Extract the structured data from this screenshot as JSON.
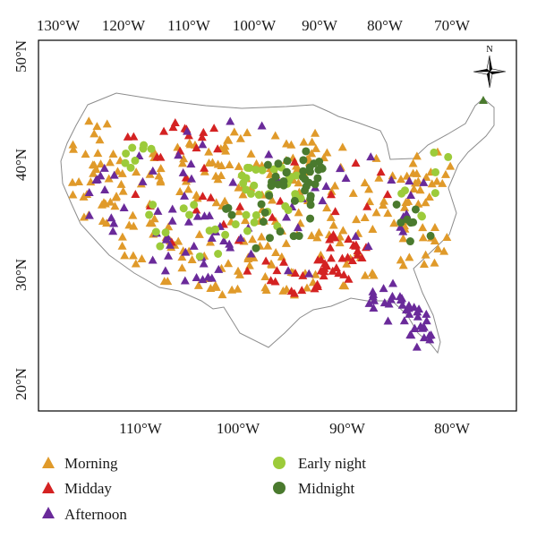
{
  "map": {
    "top_lon_ticks": [
      {
        "lon": -130,
        "label": "130°W"
      },
      {
        "lon": -120,
        "label": "120°W"
      },
      {
        "lon": -110,
        "label": "110°W"
      },
      {
        "lon": -100,
        "label": "100°W"
      },
      {
        "lon": -90,
        "label": "90°W"
      },
      {
        "lon": -80,
        "label": "80°W"
      },
      {
        "lon": -70,
        "label": "70°W"
      }
    ],
    "bottom_lon_ticks": [
      {
        "lon": -110,
        "label": "110°W"
      },
      {
        "lon": -100,
        "label": "100°W"
      },
      {
        "lon": -90,
        "label": "90°W"
      },
      {
        "lon": -80,
        "label": "80°W"
      }
    ],
    "lat_ticks": [
      {
        "lat": 50,
        "label": "50°N"
      },
      {
        "lat": 40,
        "label": "40°N"
      },
      {
        "lat": 30,
        "label": "30°N"
      },
      {
        "lat": 20,
        "label": "20°N"
      }
    ],
    "compass_label": "N",
    "colors": {
      "morning": "#E09A2A",
      "midday": "#D42222",
      "afternoon": "#6A2A9A",
      "early_night": "#9CCB3A",
      "midnight": "#4A7A2E",
      "outline": "#8c8c8c"
    }
  },
  "legend": {
    "morning": "Morning",
    "midday": "Midday",
    "afternoon": "Afternoon",
    "early_night": "Early night",
    "midnight": "Midnight"
  }
}
